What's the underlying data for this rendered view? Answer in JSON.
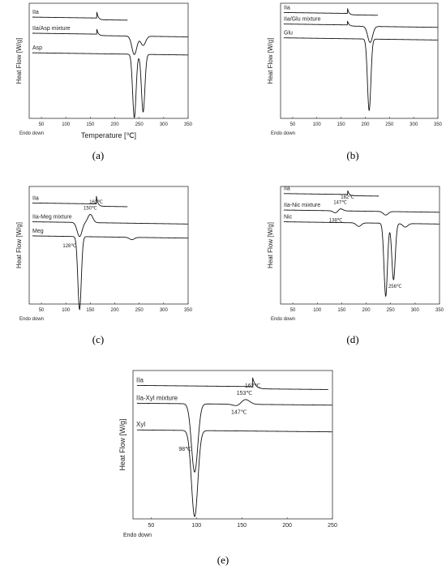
{
  "chart_data": [
    {
      "id": "a",
      "type": "line",
      "caption": "(a)",
      "ylabel": "Heat Flow [W/g]",
      "xlabel": "Temperature [℃]",
      "endo_label": "Endo down",
      "xlim": [
        25,
        350
      ],
      "xticks": [
        50,
        100,
        150,
        200,
        250,
        300,
        350
      ],
      "grid": false,
      "series": [
        {
          "name": "IIa",
          "baseline": 0.88,
          "features": [
            {
              "t": "step",
              "x": 163,
              "d": 0.06
            }
          ]
        },
        {
          "name": "IIa/Asp mixture",
          "baseline": 0.74,
          "features": [
            {
              "t": "step",
              "x": 163,
              "d": 0.05
            },
            {
              "t": "peak",
              "x": 240,
              "d": -0.16
            },
            {
              "t": "peak",
              "x": 258,
              "d": -0.08
            }
          ]
        },
        {
          "name": "Asp",
          "baseline": 0.57,
          "features": [
            {
              "t": "peak",
              "x": 240,
              "d": -0.55
            },
            {
              "t": "peak",
              "x": 258,
              "d": -0.5
            }
          ]
        }
      ],
      "annotations": []
    },
    {
      "id": "b",
      "type": "line",
      "caption": "(b)",
      "ylabel": "Heat Flow [W/g]",
      "xlabel": "",
      "endo_label": "Endo down",
      "xlim": [
        25,
        350
      ],
      "xticks": [
        50,
        100,
        150,
        200,
        250,
        300,
        350
      ],
      "grid": false,
      "series": [
        {
          "name": "IIa",
          "baseline": 0.92,
          "features": [
            {
              "t": "step",
              "x": 163,
              "d": 0.05
            }
          ]
        },
        {
          "name": "IIa/Glu mixture",
          "baseline": 0.82,
          "features": [
            {
              "t": "step",
              "x": 163,
              "d": 0.04
            },
            {
              "t": "peak",
              "x": 210,
              "d": -0.14
            }
          ]
        },
        {
          "name": "Glu",
          "baseline": 0.7,
          "features": [
            {
              "t": "peak",
              "x": 208,
              "d": -0.62
            }
          ]
        }
      ],
      "annotations": []
    },
    {
      "id": "c",
      "type": "line",
      "caption": "(c)",
      "ylabel": "Heat Flow [W/g]",
      "xlabel": "",
      "endo_label": "Endo down",
      "xlim": [
        25,
        350
      ],
      "xticks": [
        50,
        100,
        150,
        200,
        250,
        300,
        350
      ],
      "grid": false,
      "series": [
        {
          "name": "IIa",
          "baseline": 0.86,
          "features": [
            {
              "t": "step",
              "x": 162,
              "d": 0.08
            }
          ]
        },
        {
          "name": "IIa-Meg mixture",
          "baseline": 0.7,
          "features": [
            {
              "t": "peak",
              "x": 128,
              "d": -0.12
            },
            {
              "t": "peak",
              "x": 150,
              "d": 0.07
            }
          ]
        },
        {
          "name": "Meg",
          "baseline": 0.58,
          "features": [
            {
              "t": "peak",
              "x": 128,
              "d": -0.62
            },
            {
              "t": "peak",
              "x": 235,
              "d": -0.02
            }
          ]
        }
      ],
      "annotations": [
        {
          "text": "162℃",
          "x": 162,
          "series": 0,
          "pos": "below"
        },
        {
          "text": "150℃",
          "x": 150,
          "series": 1,
          "pos": "above"
        },
        {
          "text": "128℃",
          "x": 128,
          "series": 2,
          "pos": "below-left"
        }
      ]
    },
    {
      "id": "d",
      "type": "line",
      "caption": "(d)",
      "ylabel": "Heat Flow [W/g]",
      "xlabel": "",
      "endo_label": "Endo down",
      "xlim": [
        25,
        350
      ],
      "xticks": [
        50,
        100,
        150,
        200,
        250,
        300,
        350
      ],
      "grid": false,
      "series": [
        {
          "name": "IIa",
          "baseline": 0.94,
          "features": [
            {
              "t": "step",
              "x": 162,
              "d": 0.04
            }
          ]
        },
        {
          "name": "IIa-Nic mixture",
          "baseline": 0.8,
          "features": [
            {
              "t": "peak",
              "x": 138,
              "d": -0.02
            },
            {
              "t": "peak",
              "x": 147,
              "d": 0.02
            },
            {
              "t": "peak",
              "x": 240,
              "d": -0.03
            }
          ]
        },
        {
          "name": "Nic",
          "baseline": 0.7,
          "features": [
            {
              "t": "peak",
              "x": 185,
              "d": -0.03
            },
            {
              "t": "peak",
              "x": 240,
              "d": -0.62
            },
            {
              "t": "peak",
              "x": 256,
              "d": -0.48
            },
            {
              "t": "peak",
              "x": 280,
              "d": -0.03
            }
          ]
        }
      ],
      "annotations": [
        {
          "text": "162℃",
          "x": 162,
          "series": 0,
          "pos": "below"
        },
        {
          "text": "147℃",
          "x": 147,
          "series": 1,
          "pos": "above"
        },
        {
          "text": "138℃",
          "x": 138,
          "series": 1,
          "pos": "below"
        },
        {
          "text": "256℃",
          "x": 256,
          "series": 2,
          "pos": "min"
        }
      ]
    },
    {
      "id": "e",
      "type": "line",
      "caption": "(e)",
      "ylabel": "Heat Flow [W/g]",
      "xlabel": "",
      "endo_label": "Endo down",
      "xlim": [
        30,
        250
      ],
      "xticks": [
        50,
        100,
        150,
        200,
        250
      ],
      "grid": false,
      "series": [
        {
          "name": "IIa",
          "baseline": 0.9,
          "features": [
            {
              "t": "step",
              "x": 162,
              "d": 0.06
            }
          ]
        },
        {
          "name": "IIa-Xyl mixture",
          "baseline": 0.78,
          "features": [
            {
              "t": "peak",
              "x": 98,
              "d": -0.46
            },
            {
              "t": "peak",
              "x": 147,
              "d": -0.02
            },
            {
              "t": "peak",
              "x": 153,
              "d": 0.04
            }
          ]
        },
        {
          "name": "Xyl",
          "baseline": 0.6,
          "features": [
            {
              "t": "peak",
              "x": 98,
              "d": -0.58
            }
          ]
        }
      ],
      "annotations": [
        {
          "text": "162℃",
          "x": 162,
          "series": 0,
          "pos": "below"
        },
        {
          "text": "153℃",
          "x": 153,
          "series": 1,
          "pos": "above"
        },
        {
          "text": "147℃",
          "x": 147,
          "series": 1,
          "pos": "below"
        },
        {
          "text": "98℃",
          "x": 98,
          "series": 2,
          "pos": "left"
        }
      ]
    }
  ]
}
